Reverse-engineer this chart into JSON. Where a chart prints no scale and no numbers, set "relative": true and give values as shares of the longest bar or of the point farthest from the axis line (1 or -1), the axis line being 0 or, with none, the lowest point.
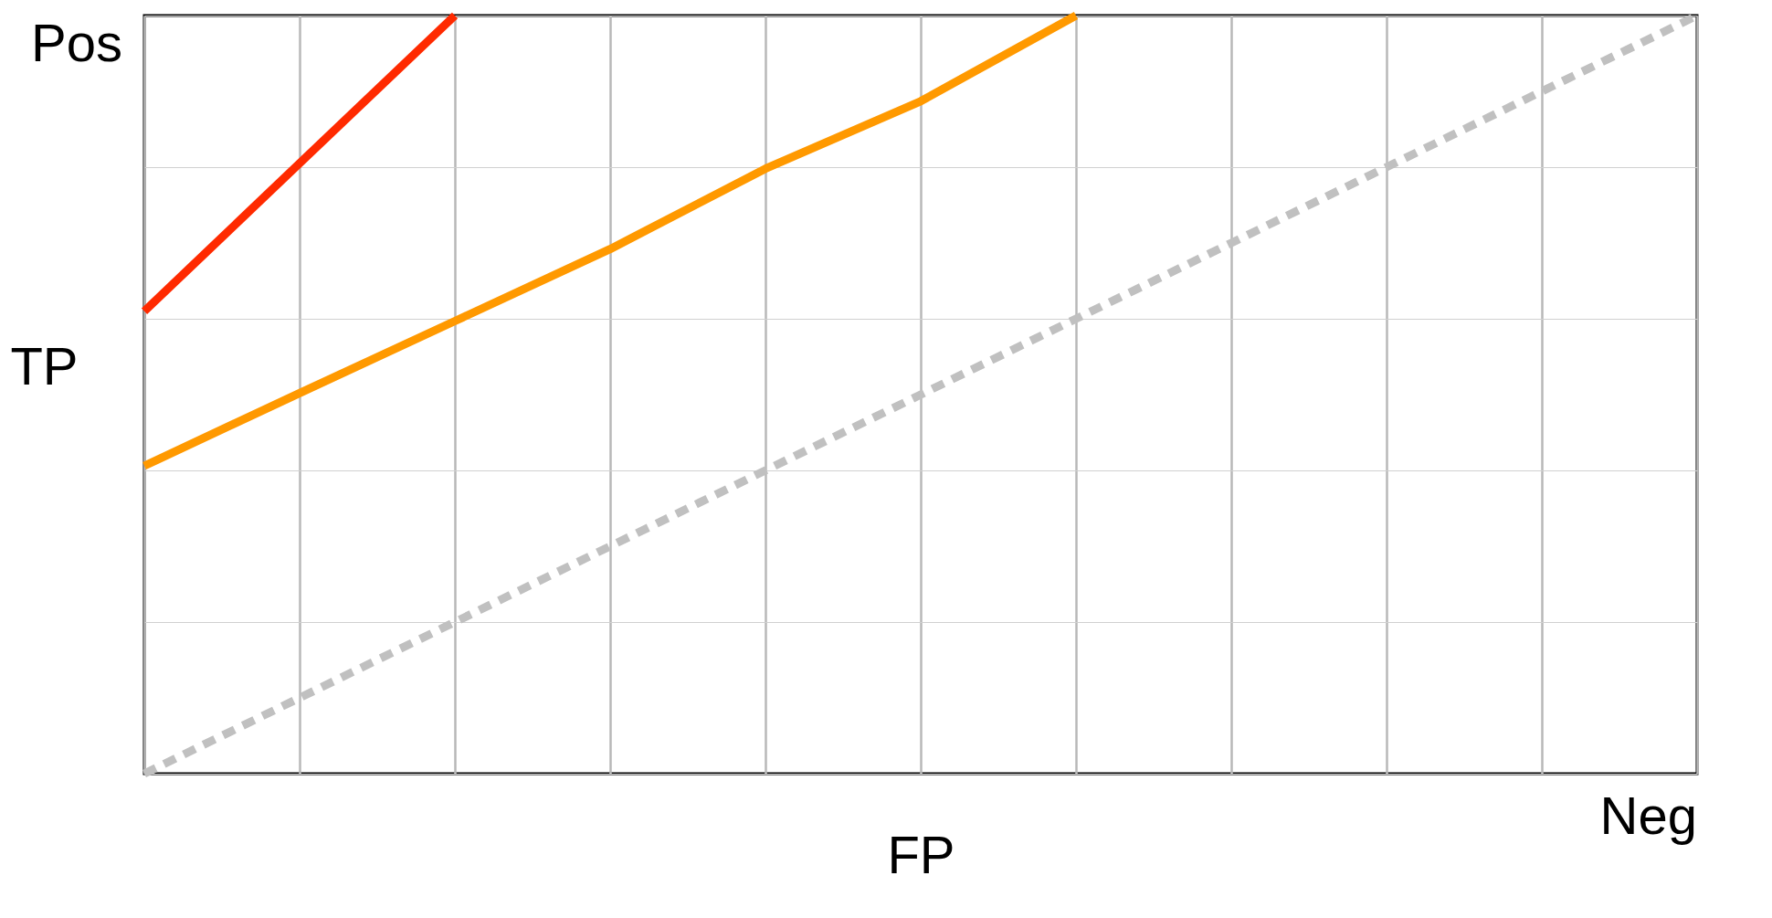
{
  "chart_data": {
    "type": "line",
    "xlabel": "FP",
    "ylabel": "TP",
    "relative": true,
    "annotations": [
      "Pos",
      "Neg"
    ],
    "categories": [
      null,
      null,
      null,
      null,
      null,
      null,
      null,
      null,
      null,
      null,
      null
    ],
    "grid": true,
    "marker": "none",
    "series": [
      {
        "color": "#ff2a00",
        "line_style": "solid",
        "values": [
          0.61,
          0.805,
          1,
          null,
          null,
          null,
          null,
          null,
          null,
          null,
          null
        ]
      },
      {
        "color": "#ff9900",
        "line_style": "solid",
        "values": [
          0.406,
          0.502,
          0.597,
          0.692,
          0.798,
          0.887,
          1,
          null,
          null,
          null,
          null
        ]
      },
      {
        "color": "#c0c0c0",
        "line_style": "dashed",
        "values": [
          0,
          0.1,
          0.2,
          0.3,
          0.4,
          0.5,
          0.6,
          0.7,
          0.8,
          0.9,
          1
        ]
      }
    ]
  }
}
